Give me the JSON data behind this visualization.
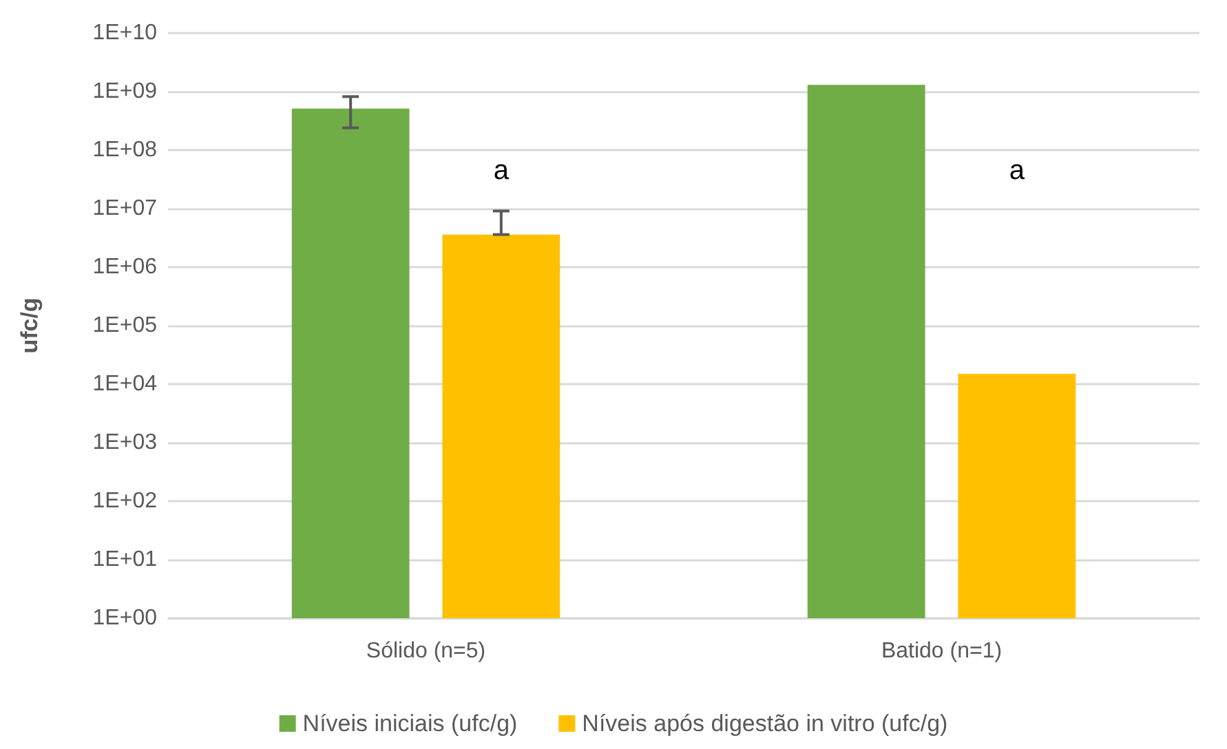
{
  "chart_data": {
    "type": "bar",
    "ylabel": "ufc/g",
    "log": "y",
    "grid": "y",
    "legend": "bottom",
    "categories": [
      "Sólido (n=5)",
      "Batido (n=1)"
    ],
    "series": [
      {
        "name": "Níveis iniciais (ufc/g)",
        "color": "#70ad47",
        "values": [
          510000000,
          1300000000
        ],
        "errors": [
          [
            240000000,
            820000000
          ],
          null
        ]
      },
      {
        "name": "Níveis após digestão in vitro (ufc/g)",
        "color": "#ffc000",
        "values": [
          3600000,
          15000
        ],
        "errors": [
          [
            3600000,
            9100000
          ],
          null
        ]
      }
    ],
    "ylim": [
      1,
      10000000000
    ],
    "yticks": [
      {
        "value": 1,
        "label": "1E+00"
      },
      {
        "value": 10,
        "label": "1E+01"
      },
      {
        "value": 100,
        "label": "1E+02"
      },
      {
        "value": 1000,
        "label": "1E+03"
      },
      {
        "value": 10000,
        "label": "1E+04"
      },
      {
        "value": 100000,
        "label": "1E+05"
      },
      {
        "value": 1000000,
        "label": "1E+06"
      },
      {
        "value": 10000000,
        "label": "1E+07"
      },
      {
        "value": 100000000,
        "label": "1E+08"
      },
      {
        "value": 1000000000,
        "label": "1E+09"
      },
      {
        "value": 10000000000,
        "label": "1E+10"
      }
    ],
    "annotations": [
      "a",
      "a"
    ]
  }
}
